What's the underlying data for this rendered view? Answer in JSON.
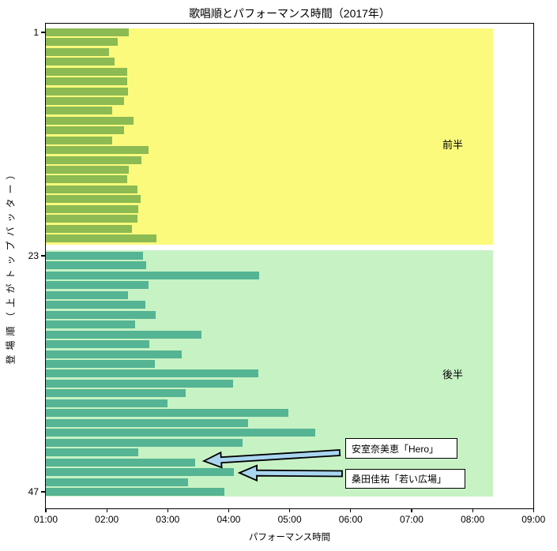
{
  "chart_data": {
    "type": "bar",
    "orientation": "horizontal",
    "title": "歌唱順とパフォーマンス時間（2017年）",
    "xlabel": "パフォーマンス時間",
    "ylabel": "登場順（上がトップバッター）",
    "x_ticks": [
      "01:00",
      "02:00",
      "03:00",
      "04:00",
      "05:00",
      "06:00",
      "07:00",
      "08:00",
      "09:00"
    ],
    "xlim": [
      "01:00",
      "09:00"
    ],
    "y_ticks": [
      {
        "label": "1",
        "order": 1
      },
      {
        "label": "23",
        "order": 23
      },
      {
        "label": "47",
        "order": 47
      }
    ],
    "y_axis_inverted": true,
    "grid": false,
    "bar_value_format": "mm:ss",
    "values_mmss": [
      "02:22",
      "02:11",
      "02:02",
      "02:08",
      "02:20",
      "02:20",
      "02:21",
      "02:17",
      "02:05",
      "02:26",
      "02:17",
      "02:05",
      "02:41",
      "02:34",
      "02:22",
      "02:20",
      "02:30",
      "02:33",
      "02:31",
      "02:30",
      "02:25",
      "02:49",
      "02:36",
      "02:39",
      "04:30",
      "02:41",
      "02:21",
      "02:38",
      "02:48",
      "02:28",
      "03:33",
      "02:42",
      "03:14",
      "02:47",
      "04:29",
      "04:04",
      "03:18",
      "03:00",
      "04:59",
      "04:19",
      "05:25",
      "04:14",
      "02:31",
      "03:27",
      "04:05",
      "03:20",
      "03:56"
    ],
    "regions": [
      {
        "label": "前半",
        "orders": [
          1,
          22
        ],
        "x_start": "01:00",
        "x_end": "08:20",
        "color": "#FCFA7D",
        "bar_color": "#8CBA53"
      },
      {
        "label": "後半",
        "orders": [
          23,
          47
        ],
        "x_start": "01:00",
        "x_end": "08:20",
        "color": "#C7F2C4",
        "bar_color": "#55B493"
      }
    ],
    "annotations": [
      {
        "text": "安室奈美恵「Hero」",
        "order": 44,
        "value": "03:27"
      },
      {
        "text": "桑田佳祐「若い広場」",
        "order": 45,
        "value": "04:05"
      }
    ],
    "annotation_arrow_color": "#A9D5EF"
  }
}
